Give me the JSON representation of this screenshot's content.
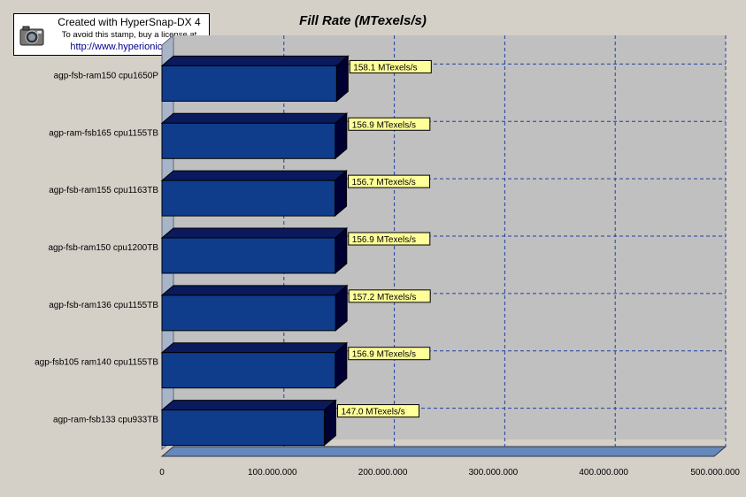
{
  "stamp": {
    "line1": "Created with HyperSnap-DX 4",
    "line2": "To avoid this stamp, buy a license at",
    "line3": "http://www.hyperionics.com",
    "icon": "camera-icon"
  },
  "colors": {
    "background": "#d4d0c8",
    "plot": "#c0c0c0",
    "bar_front": "#0f3d8c",
    "bar_top": "#0a1a5c",
    "bar_side": "#000033",
    "floor": "#6688bb",
    "grid": "#1f3f9f",
    "label_bg": "#ffff99"
  },
  "chart_data": {
    "type": "bar",
    "orientation": "horizontal",
    "title": "Fill Rate  (MTexels/s)",
    "categories": [
      "agp-fsb-ram150 cpu1650P",
      "agp-ram-fsb165 cpu1155TB",
      "agp-fsb-ram155 cpu1163TB",
      "agp-fsb-ram150 cpu1200TB",
      "agp-fsb-ram136 cpu1155TB",
      "agp-fsb105 ram140 cpu1155TB",
      "agp-ram-fsb133 cpu933TB"
    ],
    "values": [
      158.1,
      156.9,
      156.7,
      156.9,
      157.2,
      156.9,
      147.0
    ],
    "data_labels": [
      "158.1 MTexels/s",
      "156.9 MTexels/s",
      "156.7 MTexels/s",
      "156.9 MTexels/s",
      "157.2 MTexels/s",
      "156.9 MTexels/s",
      "147.0 MTexels/s"
    ],
    "xlim": [
      0,
      500
    ],
    "x_ticks": [
      0,
      100,
      200,
      300,
      400,
      500
    ],
    "x_tick_labels": [
      "0",
      "100.000.000",
      "200.000.000",
      "300.000.000",
      "400.000.000",
      "500.000.000"
    ],
    "grid": true
  }
}
